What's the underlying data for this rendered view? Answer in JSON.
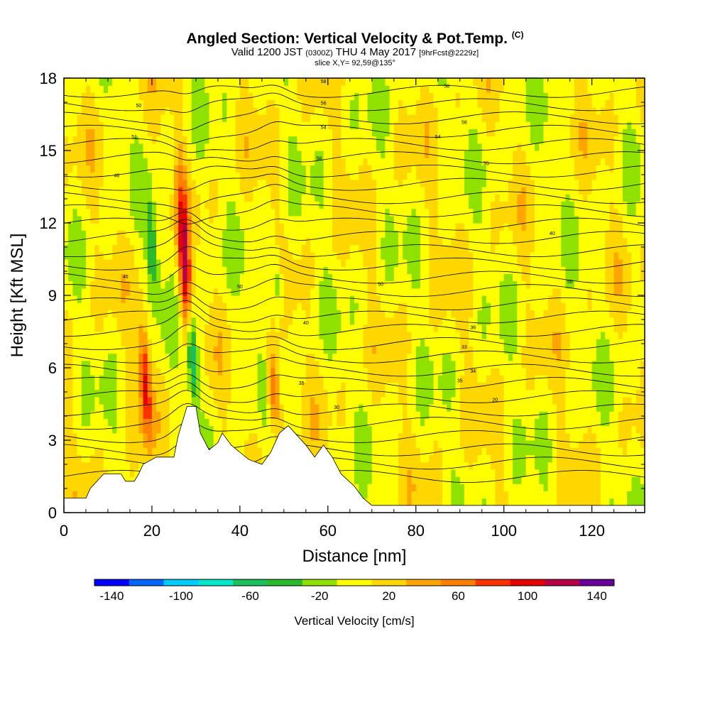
{
  "title": {
    "main": "Angled Section: Vertical Velocity & Pot.Temp.",
    "main_unit": "(C)",
    "valid_prefix": "Valid 1200 JST",
    "valid_utc": "(0300Z)",
    "valid_date": "THU 4 May 2017",
    "forecast": "[9hrFcst@2229z]",
    "slice": "slice X,Y= 92,59@135°"
  },
  "chart_data": {
    "type": "heatmap",
    "xlabel": "Distance [nm]",
    "ylabel": "Height [Kft MSL]",
    "xlim": [
      0,
      132
    ],
    "ylim": [
      0,
      18
    ],
    "x_ticks": [
      0,
      20,
      40,
      60,
      80,
      100,
      120
    ],
    "y_ticks": [
      0,
      3,
      6,
      9,
      12,
      15,
      18
    ],
    "colorbar": {
      "label": "Vertical Velocity [cm/s]",
      "range": [
        -150,
        150
      ],
      "tick_labels": [
        -140,
        -100,
        -60,
        -20,
        20,
        60,
        100,
        140
      ],
      "colors": [
        "#0000ff",
        "#0066ff",
        "#00ccff",
        "#00e6c8",
        "#1dbf5a",
        "#2eb82e",
        "#8fe100",
        "#ffff00",
        "#ffd700",
        "#ffa500",
        "#ff7f00",
        "#ff3300",
        "#e60000",
        "#b30047",
        "#660099"
      ]
    },
    "updrafts": [
      {
        "x": 27.5,
        "ymin": 6,
        "ymax": 14,
        "peak": 110
      },
      {
        "x": 18.5,
        "ymin": 3,
        "ymax": 8,
        "peak": 90
      },
      {
        "x": 47.5,
        "ymin": 3.5,
        "ymax": 7,
        "peak": 85
      }
    ],
    "downdrafts": [
      {
        "x": 29,
        "ymin": 4.5,
        "ymax": 8.5,
        "peak": -110
      },
      {
        "x": 20,
        "ymin": 9,
        "ymax": 13,
        "peak": -60
      },
      {
        "x": 48.5,
        "ymin": 8,
        "ymax": 11,
        "peak": -45
      }
    ],
    "terrain": [
      [
        0,
        0.6
      ],
      [
        5,
        0.6
      ],
      [
        6,
        1
      ],
      [
        9,
        1.6
      ],
      [
        13,
        1.6
      ],
      [
        14,
        1.3
      ],
      [
        16,
        1.3
      ],
      [
        17,
        1.6
      ],
      [
        18,
        2
      ],
      [
        21,
        2.3
      ],
      [
        25,
        2.3
      ],
      [
        26,
        3.2
      ],
      [
        28,
        4.4
      ],
      [
        30,
        4.4
      ],
      [
        31,
        3.3
      ],
      [
        33,
        2.6
      ],
      [
        35,
        2.9
      ],
      [
        36,
        3.3
      ],
      [
        38,
        2.8
      ],
      [
        40,
        2.5
      ],
      [
        42,
        2.2
      ],
      [
        45,
        2.0
      ],
      [
        47,
        2.5
      ],
      [
        49,
        3.3
      ],
      [
        51,
        3.6
      ],
      [
        53,
        3.2
      ],
      [
        55,
        2.8
      ],
      [
        57,
        2.3
      ],
      [
        59,
        2.8
      ],
      [
        61,
        2.3
      ],
      [
        63,
        1.6
      ],
      [
        66,
        1.1
      ],
      [
        68,
        0.6
      ],
      [
        70,
        0.3
      ],
      [
        132,
        0.3
      ]
    ],
    "contour_labels": [
      {
        "x": 17,
        "y": 16.8,
        "text": "50"
      },
      {
        "x": 16,
        "y": 15.5,
        "text": "51"
      },
      {
        "x": 12,
        "y": 13.9,
        "text": "46"
      },
      {
        "x": 14,
        "y": 9.7,
        "text": "46"
      },
      {
        "x": 40,
        "y": 9.3,
        "text": "50"
      },
      {
        "x": 72,
        "y": 9.4,
        "text": "50"
      },
      {
        "x": 115,
        "y": 9.5,
        "text": "50"
      },
      {
        "x": 55,
        "y": 7.8,
        "text": "40"
      },
      {
        "x": 93,
        "y": 7.6,
        "text": "36"
      },
      {
        "x": 91,
        "y": 6.8,
        "text": "33"
      },
      {
        "x": 93,
        "y": 5.8,
        "text": "34"
      },
      {
        "x": 90,
        "y": 5.4,
        "text": "35"
      },
      {
        "x": 98,
        "y": 4.6,
        "text": "20"
      },
      {
        "x": 62,
        "y": 4.3,
        "text": "30"
      },
      {
        "x": 54,
        "y": 5.3,
        "text": "35"
      },
      {
        "x": 111,
        "y": 11.5,
        "text": "40"
      },
      {
        "x": 58,
        "y": 14.6,
        "text": "56"
      },
      {
        "x": 59,
        "y": 17.8,
        "text": "58"
      },
      {
        "x": 59,
        "y": 16.9,
        "text": "56"
      },
      {
        "x": 87,
        "y": 17.6,
        "text": "58"
      },
      {
        "x": 91,
        "y": 16.1,
        "text": "58"
      },
      {
        "x": 85,
        "y": 15.5,
        "text": "54"
      },
      {
        "x": 96,
        "y": 14.4,
        "text": "55"
      },
      {
        "x": 59,
        "y": 15.9,
        "text": "54"
      }
    ]
  }
}
